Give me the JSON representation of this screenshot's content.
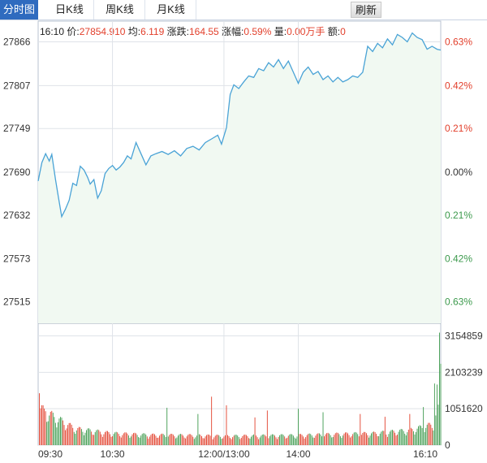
{
  "tabs": [
    {
      "label": "分时图",
      "active": true
    },
    {
      "label": "日K线",
      "active": false
    },
    {
      "label": "周K线",
      "active": false
    },
    {
      "label": "月K线",
      "active": false
    }
  ],
  "refresh_label": "刷新",
  "info": {
    "time": "16:10",
    "price_label": "价:",
    "price": "27854.910",
    "avg_label": "均:",
    "avg": "6.119",
    "change_label": "涨跌:",
    "change": "164.55",
    "pct_label": "涨幅:",
    "pct": "0.59%",
    "vol_label": "量:",
    "vol": "0.00万手",
    "amt_label": "额:",
    "amt": "0"
  },
  "colors": {
    "line": "#4aa3d6",
    "area": "#f1f9f2",
    "up": "#e23f2b",
    "down": "#3d9a4d",
    "grid": "#dfe3e8",
    "axis_text": "#333333"
  },
  "chart_data": {
    "type": "line",
    "price_ticks": [
      27866,
      27807,
      27749,
      27690,
      27632,
      27573,
      27515
    ],
    "pct_ticks": [
      "0.63%",
      "0.42%",
      "0.21%",
      "0.00%",
      "0.21%",
      "0.42%",
      "0.63%"
    ],
    "pct_tick_trend": [
      "up",
      "up",
      "up",
      "flat",
      "down",
      "down",
      "down"
    ],
    "ylim": [
      27486,
      27894
    ],
    "x_labels": [
      "09:30",
      "10:30",
      "12:00/13:00",
      "14:00",
      "16:10"
    ],
    "time_range_minutes": [
      0,
      325
    ],
    "x_label_minutes": [
      0,
      60,
      150,
      210,
      325
    ],
    "volume_ticks": [
      "3154859",
      "2103239",
      "1051620",
      "0"
    ],
    "volume_max": 3520000,
    "price_series": [
      [
        0,
        27678
      ],
      [
        3,
        27703
      ],
      [
        6,
        27715
      ],
      [
        9,
        27705
      ],
      [
        11,
        27714
      ],
      [
        14,
        27680
      ],
      [
        16,
        27660
      ],
      [
        19,
        27630
      ],
      [
        22,
        27640
      ],
      [
        25,
        27652
      ],
      [
        28,
        27675
      ],
      [
        31,
        27672
      ],
      [
        34,
        27698
      ],
      [
        37,
        27693
      ],
      [
        40,
        27683
      ],
      [
        42,
        27674
      ],
      [
        45,
        27680
      ],
      [
        48,
        27655
      ],
      [
        51,
        27665
      ],
      [
        54,
        27688
      ],
      [
        57,
        27695
      ],
      [
        60,
        27699
      ],
      [
        63,
        27693
      ],
      [
        66,
        27697
      ],
      [
        69,
        27703
      ],
      [
        72,
        27712
      ],
      [
        75,
        27708
      ],
      [
        79,
        27730
      ],
      [
        83,
        27715
      ],
      [
        87,
        27700
      ],
      [
        91,
        27712
      ],
      [
        95,
        27715
      ],
      [
        100,
        27718
      ],
      [
        105,
        27714
      ],
      [
        110,
        27719
      ],
      [
        115,
        27712
      ],
      [
        120,
        27722
      ],
      [
        125,
        27725
      ],
      [
        130,
        27720
      ],
      [
        135,
        27730
      ],
      [
        140,
        27735
      ],
      [
        145,
        27740
      ],
      [
        148,
        27728
      ],
      [
        152,
        27750
      ],
      [
        155,
        27795
      ],
      [
        158,
        27808
      ],
      [
        162,
        27803
      ],
      [
        166,
        27812
      ],
      [
        170,
        27820
      ],
      [
        174,
        27818
      ],
      [
        178,
        27830
      ],
      [
        182,
        27827
      ],
      [
        186,
        27838
      ],
      [
        190,
        27832
      ],
      [
        194,
        27842
      ],
      [
        198,
        27830
      ],
      [
        202,
        27840
      ],
      [
        206,
        27825
      ],
      [
        210,
        27810
      ],
      [
        214,
        27825
      ],
      [
        218,
        27832
      ],
      [
        222,
        27822
      ],
      [
        226,
        27826
      ],
      [
        230,
        27815
      ],
      [
        234,
        27820
      ],
      [
        238,
        27812
      ],
      [
        242,
        27818
      ],
      [
        246,
        27812
      ],
      [
        250,
        27815
      ],
      [
        254,
        27820
      ],
      [
        258,
        27818
      ],
      [
        262,
        27825
      ],
      [
        266,
        27860
      ],
      [
        270,
        27853
      ],
      [
        274,
        27864
      ],
      [
        278,
        27858
      ],
      [
        282,
        27870
      ],
      [
        286,
        27862
      ],
      [
        290,
        27876
      ],
      [
        294,
        27872
      ],
      [
        298,
        27866
      ],
      [
        302,
        27878
      ],
      [
        306,
        27872
      ],
      [
        310,
        27869
      ],
      [
        314,
        27856
      ],
      [
        318,
        27860
      ],
      [
        322,
        27856
      ],
      [
        325,
        27855
      ]
    ],
    "volume_samples": [
      [
        0,
        960000
      ],
      [
        30,
        420000
      ],
      [
        60,
        300000
      ],
      [
        90,
        260000
      ],
      [
        120,
        250000
      ],
      [
        150,
        230000
      ],
      [
        180,
        240000
      ],
      [
        210,
        250000
      ],
      [
        240,
        280000
      ],
      [
        270,
        300000
      ],
      [
        300,
        380000
      ],
      [
        318,
        520000
      ],
      [
        324,
        980000
      ]
    ],
    "volume_spikes": [
      [
        1,
        1500000
      ],
      [
        6,
        980000
      ],
      [
        104,
        1080000
      ],
      [
        129,
        900000
      ],
      [
        140,
        1400000
      ],
      [
        152,
        1150000
      ],
      [
        175,
        800000
      ],
      [
        185,
        1000000
      ],
      [
        210,
        1050000
      ],
      [
        230,
        950000
      ],
      [
        260,
        900000
      ],
      [
        280,
        820000
      ],
      [
        300,
        900000
      ],
      [
        311,
        1100000
      ],
      [
        320,
        1780000
      ],
      [
        322,
        1750000
      ],
      [
        324,
        3250000
      ],
      [
        325,
        2350000
      ]
    ]
  }
}
